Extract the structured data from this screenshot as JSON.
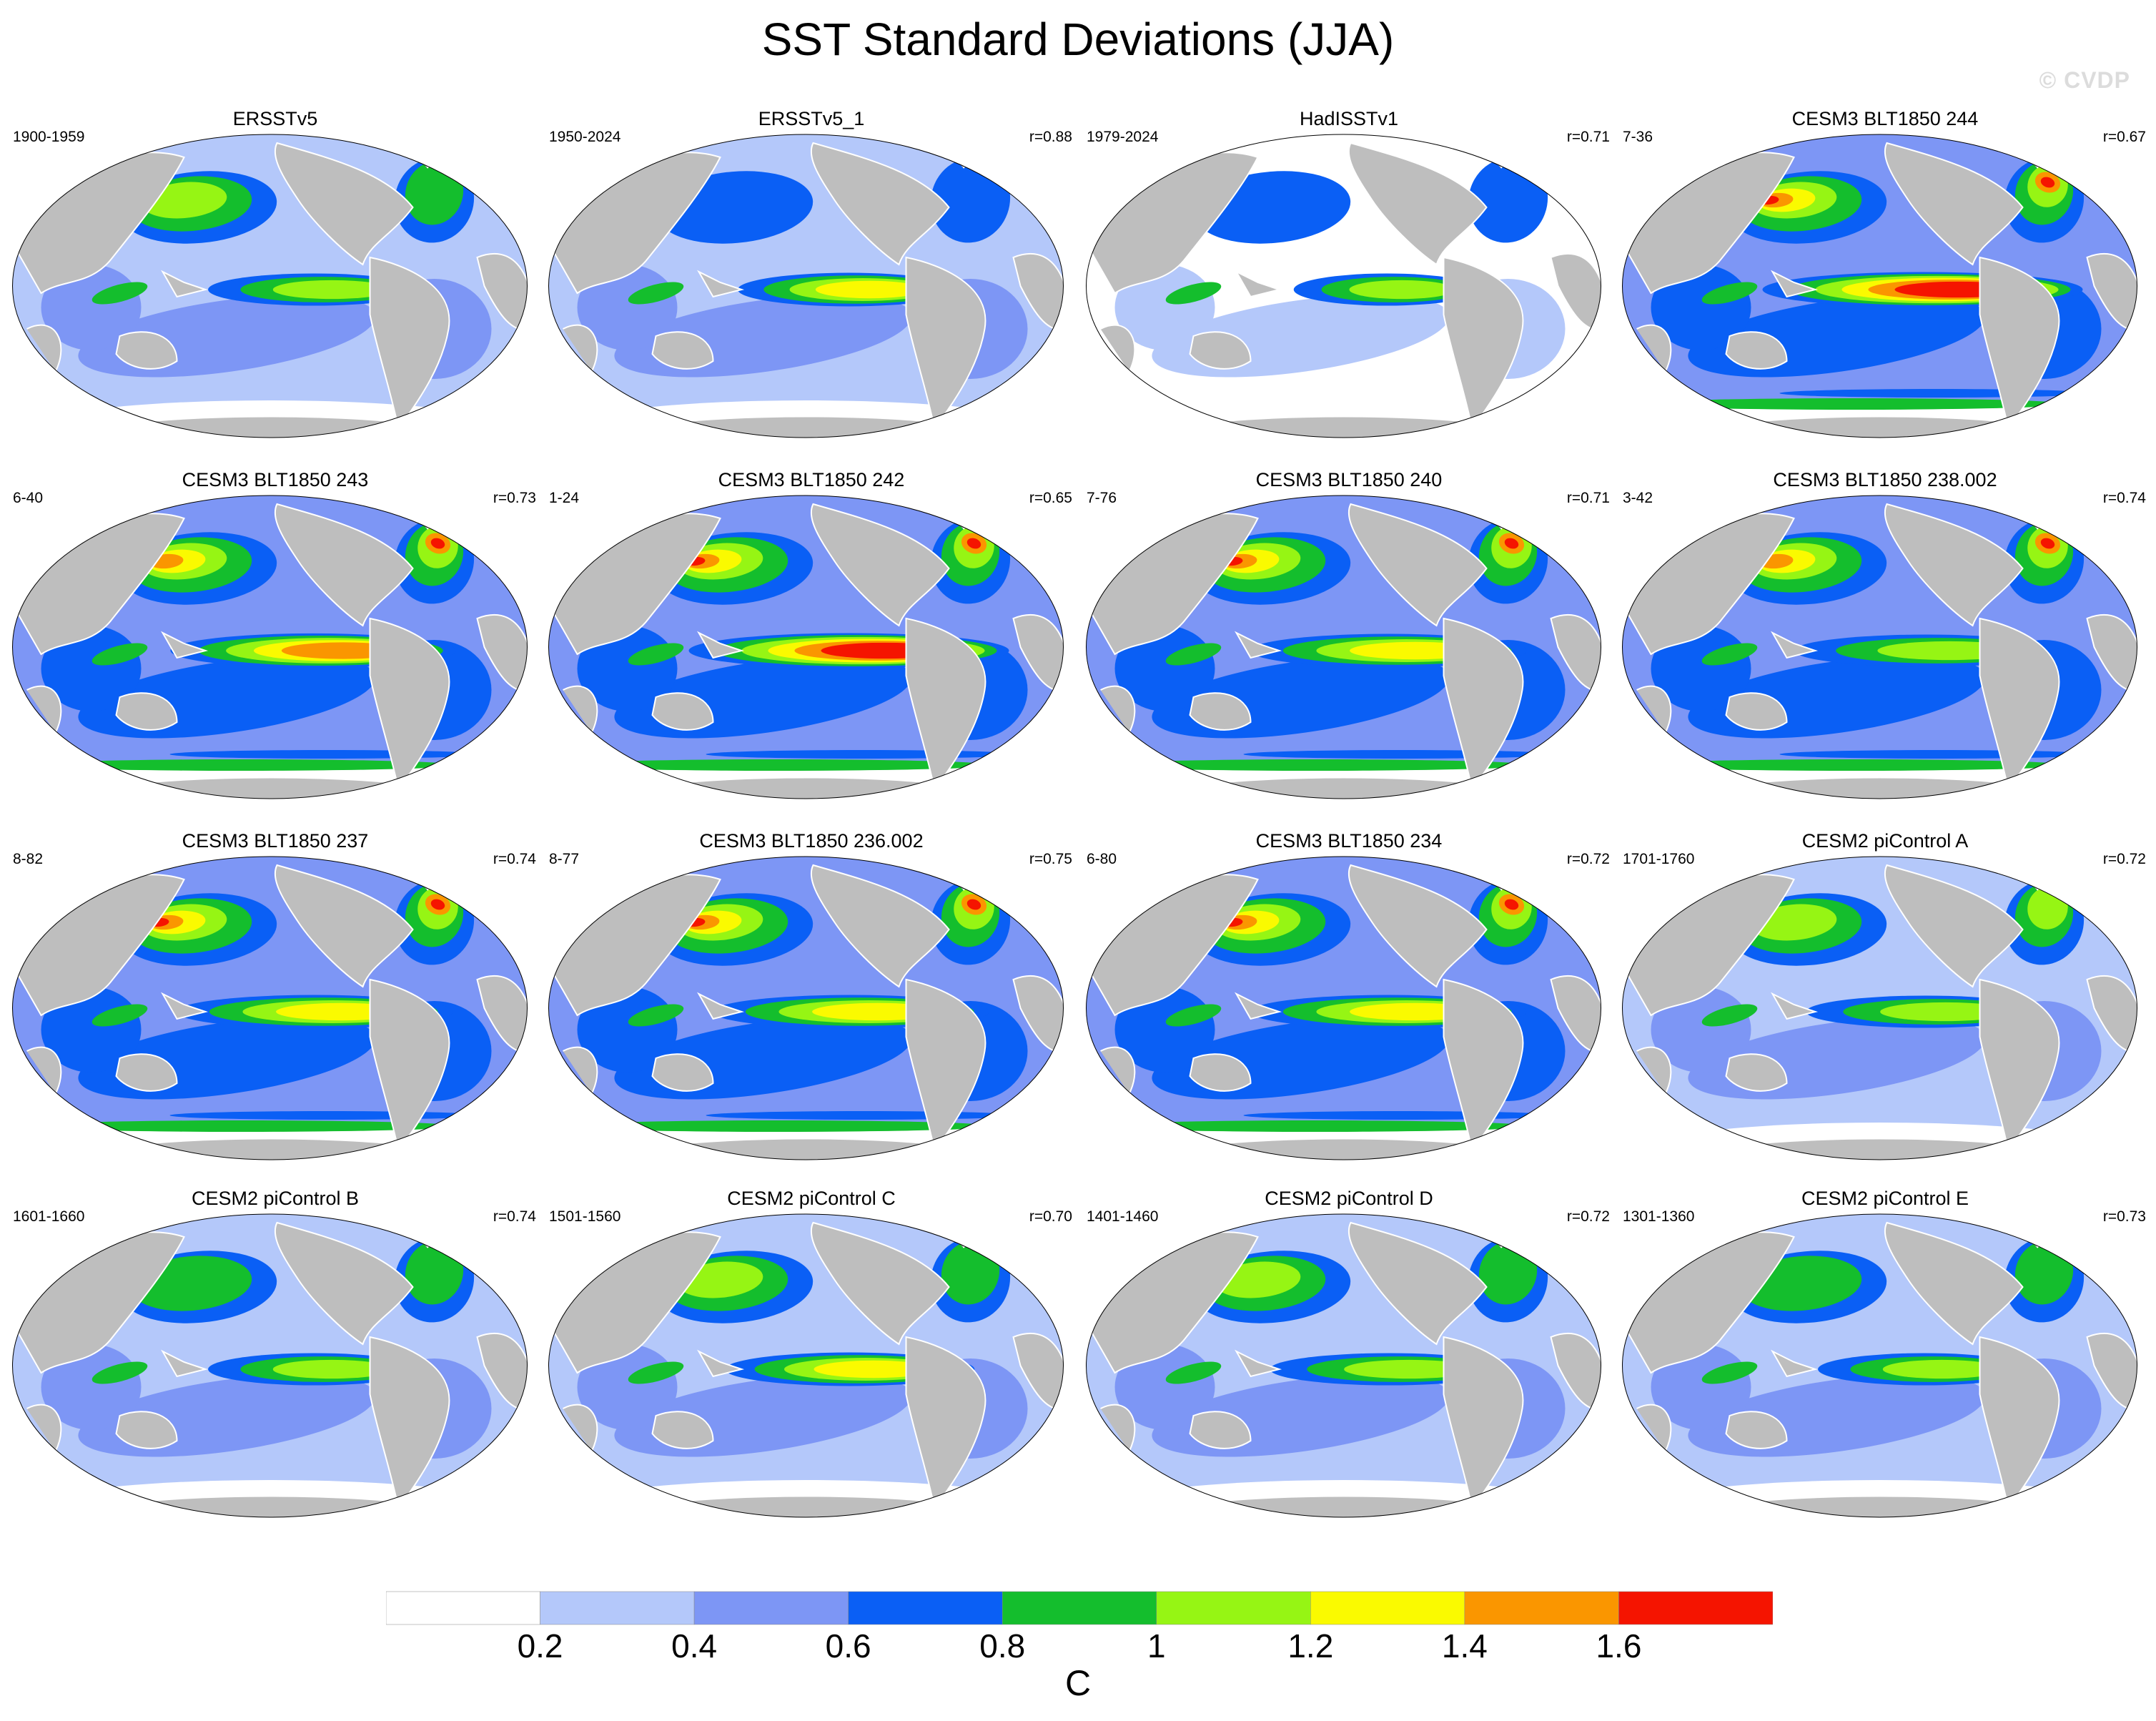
{
  "title": "SST Standard Deviations (JJA)",
  "watermark": "© CVDP",
  "colorbar": {
    "unit": "C",
    "levels": [
      "0.2",
      "0.4",
      "0.6",
      "0.8",
      "1",
      "1.2",
      "1.4",
      "1.6"
    ],
    "colors": [
      "#ffffff",
      "#b4c8fa",
      "#7d96f5",
      "#0a5ff5",
      "#14be2d",
      "#96f514",
      "#fafa00",
      "#fa9600",
      "#f51400"
    ]
  },
  "colors": {
    "land": "#bebebe",
    "coast": "#ffffff",
    "outline": "#000000"
  },
  "panels": [
    {
      "title": "ERSSTv5",
      "period": "1900-1959",
      "r": ""
    },
    {
      "title": "ERSSTv5_1",
      "period": "1950-2024",
      "r": "r=0.88"
    },
    {
      "title": "HadISSTv1",
      "period": "1979-2024",
      "r": "r=0.71"
    },
    {
      "title": "CESM3 BLT1850 244",
      "period": "7-36",
      "r": "r=0.67"
    },
    {
      "title": "CESM3 BLT1850 243",
      "period": "6-40",
      "r": "r=0.73"
    },
    {
      "title": "CESM3 BLT1850 242",
      "period": "1-24",
      "r": "r=0.65"
    },
    {
      "title": "CESM3 BLT1850 240",
      "period": "7-76",
      "r": "r=0.71"
    },
    {
      "title": "CESM3 BLT1850 238.002",
      "period": "3-42",
      "r": "r=0.74"
    },
    {
      "title": "CESM3 BLT1850 237",
      "period": "8-82",
      "r": "r=0.74"
    },
    {
      "title": "CESM3 BLT1850 236.002",
      "period": "8-77",
      "r": "r=0.75"
    },
    {
      "title": "CESM3 BLT1850 234",
      "period": "6-80",
      "r": "r=0.72"
    },
    {
      "title": "CESM2 piControl A",
      "period": "1701-1760",
      "r": "r=0.72"
    },
    {
      "title": "CESM2 piControl B",
      "period": "1601-1660",
      "r": "r=0.74"
    },
    {
      "title": "CESM2 piControl C",
      "period": "1501-1560",
      "r": "r=0.70"
    },
    {
      "title": "CESM2 piControl D",
      "period": "1401-1460",
      "r": "r=0.72"
    },
    {
      "title": "CESM2 piControl E",
      "period": "1301-1360",
      "r": "r=0.73"
    }
  ]
}
